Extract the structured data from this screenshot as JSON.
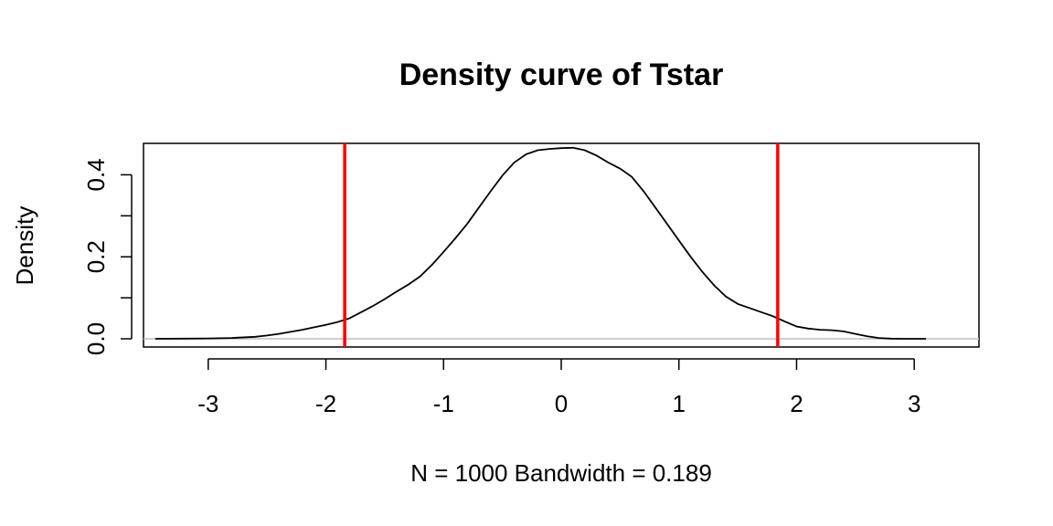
{
  "chart_data": {
    "type": "line",
    "title": "Density curve of Tstar",
    "xlabel": "N = 1000   Bandwidth = 0.189",
    "ylabel": "Density",
    "xlim": [
      -3.55,
      3.55
    ],
    "ylim": [
      0,
      0.47
    ],
    "x_ticks": [
      -3,
      -2,
      -1,
      0,
      1,
      2,
      3
    ],
    "x_tick_labels": [
      "-3",
      "-2",
      "-1",
      "0",
      "1",
      "2",
      "3"
    ],
    "y_ticks": [
      0.0,
      0.1,
      0.2,
      0.3,
      0.4
    ],
    "y_tick_labels": [
      "0.0",
      "",
      "0.2",
      "",
      "0.4"
    ],
    "grid": false,
    "baseline_color": "#bebebe",
    "series": [
      {
        "color": "#000000",
        "x": [
          -3.45,
          -3.2,
          -3.0,
          -2.8,
          -2.6,
          -2.5,
          -2.4,
          -2.3,
          -2.2,
          -2.1,
          -2.0,
          -1.9,
          -1.8,
          -1.7,
          -1.6,
          -1.5,
          -1.4,
          -1.3,
          -1.2,
          -1.1,
          -1.0,
          -0.9,
          -0.8,
          -0.7,
          -0.6,
          -0.5,
          -0.4,
          -0.3,
          -0.2,
          -0.1,
          0.0,
          0.1,
          0.2,
          0.3,
          0.4,
          0.5,
          0.6,
          0.7,
          0.8,
          0.9,
          1.0,
          1.1,
          1.2,
          1.3,
          1.4,
          1.5,
          1.6,
          1.7,
          1.8,
          1.9,
          2.0,
          2.1,
          2.2,
          2.3,
          2.4,
          2.5,
          2.6,
          2.7,
          2.8,
          2.9,
          3.0,
          3.1
        ],
        "y": [
          0.0,
          0.0005,
          0.001,
          0.002,
          0.005,
          0.008,
          0.012,
          0.017,
          0.022,
          0.028,
          0.034,
          0.041,
          0.05,
          0.065,
          0.08,
          0.097,
          0.115,
          0.132,
          0.152,
          0.18,
          0.212,
          0.245,
          0.28,
          0.32,
          0.36,
          0.398,
          0.43,
          0.45,
          0.46,
          0.463,
          0.465,
          0.466,
          0.46,
          0.447,
          0.43,
          0.415,
          0.395,
          0.36,
          0.32,
          0.28,
          0.24,
          0.2,
          0.163,
          0.13,
          0.103,
          0.085,
          0.075,
          0.065,
          0.055,
          0.042,
          0.03,
          0.025,
          0.022,
          0.021,
          0.018,
          0.012,
          0.006,
          0.002,
          0.0005,
          0.0,
          0.0,
          0.0
        ]
      }
    ],
    "reference_lines": [
      {
        "x": -1.84,
        "color": "#ff0000"
      },
      {
        "x": 1.84,
        "color": "#ff0000"
      }
    ]
  }
}
